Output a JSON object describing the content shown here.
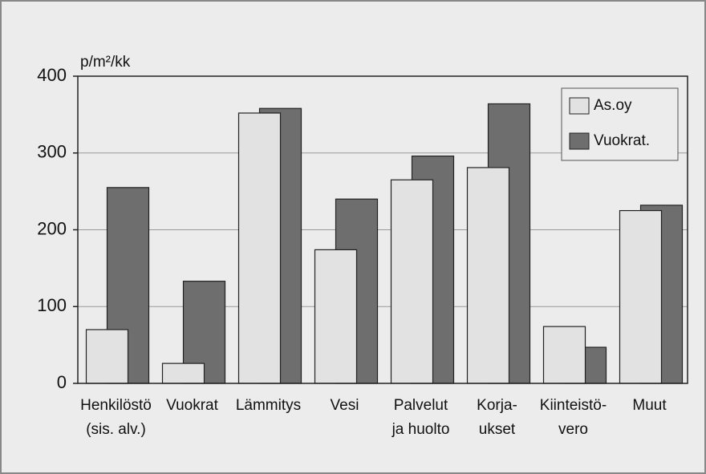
{
  "chart_data": {
    "type": "bar",
    "y_label": "p/m²/kk",
    "categories": [
      [
        "Henkilöstö",
        "(sis. alv.)"
      ],
      [
        "Vuokrat"
      ],
      [
        "Lämmitys"
      ],
      [
        "Vesi"
      ],
      [
        "Palvelut",
        "ja huolto"
      ],
      [
        "Korja-",
        "ukset"
      ],
      [
        "Kiinteistö-",
        "vero"
      ],
      [
        "Muut"
      ]
    ],
    "series": [
      {
        "name": "As.oy",
        "color": "#e2e2e2",
        "values": [
          70,
          26,
          352,
          174,
          265,
          281,
          74,
          225
        ]
      },
      {
        "name": "Vuokrat.",
        "color": "#6e6e6e",
        "values": [
          255,
          133,
          358,
          240,
          296,
          364,
          47,
          232
        ]
      }
    ],
    "ylim": [
      0,
      400
    ],
    "yticks": [
      0,
      100,
      200,
      300,
      400
    ],
    "grid": true,
    "legend": "upper right"
  }
}
